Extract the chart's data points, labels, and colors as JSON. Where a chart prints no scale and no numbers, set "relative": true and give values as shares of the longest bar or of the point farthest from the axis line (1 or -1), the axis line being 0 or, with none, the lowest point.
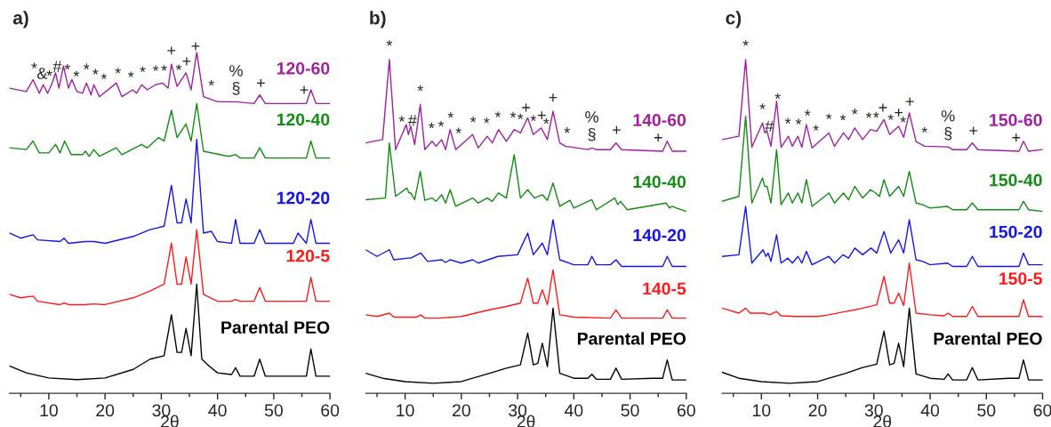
{
  "chart_data": [
    {
      "type": "line",
      "title": "a)",
      "xlabel": "2θ",
      "relative": true,
      "xlim": [
        3,
        60
      ],
      "tick_labels": "x",
      "xticks": [
        {
          "value": 5,
          "label": null
        },
        10,
        {
          "value": 15,
          "label": null
        },
        20,
        {
          "value": 25,
          "label": null
        },
        30,
        {
          "value": 35,
          "label": null
        },
        40,
        {
          "value": 45,
          "label": null
        },
        50,
        {
          "value": 55,
          "label": null
        },
        60
      ],
      "series": [
        {
          "name": "Parental PEO",
          "color": "#000000",
          "x": [
            3,
            6,
            10,
            15,
            20,
            25,
            28,
            30.5,
            31.8,
            32.8,
            33.6,
            34.4,
            35.3,
            36.3,
            37.2,
            38.5,
            40,
            42.5,
            43.2,
            44,
            46.5,
            47.5,
            48.5,
            54,
            55.8,
            56.6,
            57.5,
            60
          ],
          "values": [
            0.08,
            0.06,
            0.045,
            0.04,
            0.045,
            0.07,
            0.1,
            0.11,
            0.23,
            0.12,
            0.12,
            0.19,
            0.11,
            0.32,
            0.1,
            0.08,
            0.06,
            0.055,
            0.075,
            0.05,
            0.05,
            0.1,
            0.05,
            0.05,
            0.05,
            0.13,
            0.05,
            0.05
          ]
        },
        {
          "name": "120-5",
          "color": "#ff1a1a",
          "x": [
            3,
            5,
            7.2,
            8,
            12,
            12.7,
            13.5,
            16.5,
            18,
            20,
            25,
            28,
            30.5,
            31.8,
            32.8,
            33.6,
            34.4,
            35.3,
            36.3,
            37.5,
            40,
            42.5,
            43.2,
            44,
            46.5,
            47.5,
            48.5,
            55.8,
            56.6,
            57.5,
            60
          ],
          "values": [
            0.29,
            0.28,
            0.285,
            0.27,
            0.26,
            0.265,
            0.26,
            0.26,
            0.262,
            0.26,
            0.28,
            0.3,
            0.32,
            0.44,
            0.32,
            0.32,
            0.4,
            0.32,
            0.48,
            0.29,
            0.27,
            0.27,
            0.275,
            0.27,
            0.27,
            0.31,
            0.27,
            0.27,
            0.34,
            0.27,
            0.27
          ]
        },
        {
          "name": "120-20",
          "color": "#1515e6",
          "x": [
            3,
            5,
            7.2,
            8,
            12,
            12.7,
            13.5,
            16.5,
            18,
            20,
            25,
            28,
            30.5,
            31.8,
            32.8,
            33.6,
            34.4,
            35.3,
            36.3,
            37.5,
            38.9,
            40,
            42.5,
            43.2,
            44,
            46.5,
            47.5,
            48.5,
            53.5,
            54.3,
            55.8,
            56.6,
            57.5,
            60
          ],
          "values": [
            0.47,
            0.455,
            0.465,
            0.45,
            0.445,
            0.455,
            0.44,
            0.445,
            0.445,
            0.44,
            0.46,
            0.48,
            0.49,
            0.61,
            0.5,
            0.5,
            0.57,
            0.5,
            0.745,
            0.47,
            0.475,
            0.445,
            0.44,
            0.51,
            0.44,
            0.44,
            0.48,
            0.44,
            0.44,
            0.47,
            0.44,
            0.51,
            0.44,
            0.44
          ]
        },
        {
          "name": "120-40",
          "color": "#128c12",
          "x": [
            3,
            6,
            7.2,
            8.3,
            10,
            11.2,
            12,
            12.8,
            14,
            16,
            16.5,
            17.2,
            18,
            19,
            22,
            23,
            26.5,
            27.5,
            29.5,
            30.5,
            31.8,
            32.8,
            34.4,
            35.3,
            36.3,
            37.5,
            42,
            43.2,
            44,
            46.5,
            47.5,
            48.5,
            50,
            55.8,
            56.6,
            57.5,
            60
          ],
          "values": [
            0.72,
            0.715,
            0.74,
            0.705,
            0.705,
            0.73,
            0.705,
            0.74,
            0.7,
            0.7,
            0.71,
            0.695,
            0.715,
            0.695,
            0.72,
            0.7,
            0.73,
            0.72,
            0.75,
            0.74,
            0.83,
            0.75,
            0.79,
            0.74,
            0.85,
            0.71,
            0.695,
            0.7,
            0.69,
            0.69,
            0.72,
            0.69,
            0.69,
            0.69,
            0.74,
            0.69,
            0.69
          ]
        },
        {
          "name": "120-60",
          "color": "#a020a0",
          "x": [
            3,
            6,
            7.2,
            8.3,
            9,
            9.8,
            10.6,
            11.2,
            11.8,
            12.6,
            13.5,
            14.1,
            15,
            16,
            16.7,
            17.5,
            18,
            19,
            22,
            23,
            24.9,
            25.6,
            26.5,
            27.5,
            29,
            30.2,
            31.2,
            31.8,
            32.8,
            34.4,
            35.3,
            36.3,
            37.5,
            40,
            43.2,
            46.5,
            47.5,
            48.5,
            55.8,
            56.6,
            57.5,
            60
          ],
          "values": [
            0.895,
            0.885,
            0.92,
            0.88,
            0.905,
            0.88,
            0.91,
            0.94,
            0.895,
            0.96,
            0.895,
            0.92,
            0.885,
            0.88,
            0.91,
            0.875,
            0.905,
            0.87,
            0.91,
            0.87,
            0.89,
            0.88,
            0.905,
            0.89,
            0.905,
            0.91,
            0.895,
            0.965,
            0.9,
            0.94,
            0.89,
            1.0,
            0.87,
            0.855,
            0.855,
            0.85,
            0.875,
            0.85,
            0.85,
            0.89,
            0.85,
            0.85
          ]
        }
      ],
      "annotations": [
        {
          "text": "*",
          "x": 7.4,
          "y": 0.913
        },
        {
          "text": "&",
          "x": 8.8,
          "y": 0.898
        },
        {
          "text": "*",
          "x": 10.1,
          "y": 0.891
        },
        {
          "text": "#",
          "x": 11.5,
          "y": 0.918
        },
        {
          "text": "*",
          "x": 13.3,
          "y": 0.909
        },
        {
          "text": "*",
          "x": 14.9,
          "y": 0.889
        },
        {
          "text": "*",
          "x": 16.7,
          "y": 0.91
        },
        {
          "text": "*",
          "x": 18.3,
          "y": 0.895
        },
        {
          "text": "*",
          "x": 19.8,
          "y": 0.881
        },
        {
          "text": "*",
          "x": 22.3,
          "y": 0.898
        },
        {
          "text": "*",
          "x": 24.6,
          "y": 0.887
        },
        {
          "text": "*",
          "x": 26.7,
          "y": 0.902
        },
        {
          "text": "*",
          "x": 29.0,
          "y": 0.905
        },
        {
          "text": "*",
          "x": 30.5,
          "y": 0.906
        },
        {
          "text": "+",
          "x": 31.8,
          "y": 0.965
        },
        {
          "text": "*",
          "x": 33.1,
          "y": 0.908
        },
        {
          "text": "+",
          "x": 34.5,
          "y": 0.934
        },
        {
          "text": "+",
          "x": 36.1,
          "y": 0.978
        },
        {
          "text": "*",
          "x": 38.9,
          "y": 0.862
        },
        {
          "text": "§",
          "x": 43.3,
          "y": 0.855
        },
        {
          "text": "%",
          "x": 43.3,
          "y": 0.855
        },
        {
          "text": "+",
          "x": 47.7,
          "y": 0.87
        },
        {
          "text": "+",
          "x": 55.4,
          "y": 0.85
        }
      ]
    },
    {
      "type": "line",
      "title": "b)",
      "xlabel": "2θ",
      "relative": true,
      "xlim": [
        3,
        60
      ],
      "tick_labels": "x",
      "xticks": [
        {
          "value": 5,
          "label": null
        },
        10,
        {
          "value": 15,
          "label": null
        },
        20,
        {
          "value": 25,
          "label": null
        },
        30,
        {
          "value": 35,
          "label": null
        },
        40,
        {
          "value": 45,
          "label": null
        },
        50,
        {
          "value": 55,
          "label": null
        },
        60
      ],
      "series": [
        {
          "name": "Parental PEO",
          "color": "#000000",
          "x": [
            3,
            6,
            10,
            15,
            20,
            25,
            28,
            30.5,
            31.8,
            32.8,
            33.6,
            34.4,
            35.3,
            36.3,
            37.5,
            40,
            42.5,
            43.2,
            44,
            46.5,
            47.5,
            48.5,
            54,
            55.8,
            56.6,
            57.5,
            60
          ],
          "values": [
            0.06,
            0.045,
            0.035,
            0.03,
            0.035,
            0.06,
            0.075,
            0.085,
            0.18,
            0.085,
            0.09,
            0.15,
            0.08,
            0.255,
            0.06,
            0.045,
            0.045,
            0.057,
            0.042,
            0.042,
            0.075,
            0.042,
            0.045,
            0.045,
            0.1,
            0.04,
            0.04
          ]
        },
        {
          "name": "140-5",
          "color": "#ff1a1a",
          "x": [
            3,
            5,
            7.2,
            8,
            12,
            12.8,
            13.5,
            16,
            20,
            25,
            28,
            30.5,
            31.8,
            32.8,
            33.6,
            34.4,
            35.3,
            36.3,
            37.5,
            40,
            46.5,
            47.5,
            48.5,
            55.8,
            56.6,
            57.5,
            60
          ],
          "values": [
            0.235,
            0.23,
            0.24,
            0.228,
            0.228,
            0.235,
            0.225,
            0.225,
            0.23,
            0.25,
            0.26,
            0.27,
            0.345,
            0.27,
            0.27,
            0.31,
            0.265,
            0.37,
            0.235,
            0.228,
            0.225,
            0.25,
            0.225,
            0.225,
            0.25,
            0.225,
            0.225
          ]
        },
        {
          "name": "140-20",
          "color": "#1515e6",
          "x": [
            3,
            5,
            7.2,
            8,
            10.5,
            11,
            12.8,
            14,
            16.5,
            17.2,
            18,
            20,
            22,
            23,
            26.5,
            30,
            31.8,
            32.8,
            34.4,
            35.3,
            36.3,
            37.5,
            40,
            42.5,
            43.2,
            44,
            46.5,
            47.5,
            48.5,
            55.8,
            56.6,
            57.5,
            60
          ],
          "values": [
            0.43,
            0.41,
            0.43,
            0.4,
            0.405,
            0.405,
            0.42,
            0.395,
            0.4,
            0.392,
            0.4,
            0.39,
            0.4,
            0.39,
            0.41,
            0.415,
            0.48,
            0.415,
            0.45,
            0.415,
            0.52,
            0.4,
            0.385,
            0.385,
            0.41,
            0.385,
            0.385,
            0.4,
            0.38,
            0.38,
            0.41,
            0.38,
            0.38
          ]
        },
        {
          "name": "140-40",
          "color": "#128c12",
          "x": [
            3,
            6.5,
            7.2,
            8.3,
            10.3,
            10.7,
            11,
            11.7,
            12.7,
            13.5,
            14.8,
            15.5,
            16.5,
            17.2,
            18,
            19,
            22,
            23,
            24.6,
            25.5,
            26.6,
            28,
            29.4,
            30.5,
            31.8,
            33,
            34.4,
            35.3,
            36.3,
            37.5,
            39.3,
            40,
            43.2,
            44,
            47.3,
            47.8,
            48.3,
            49.5,
            56.4,
            57,
            57.4,
            60
          ],
          "values": [
            0.58,
            0.585,
            0.75,
            0.59,
            0.615,
            0.6,
            0.6,
            0.58,
            0.665,
            0.578,
            0.585,
            0.575,
            0.595,
            0.57,
            0.61,
            0.56,
            0.585,
            0.57,
            0.585,
            0.575,
            0.6,
            0.585,
            0.715,
            0.585,
            0.61,
            0.585,
            0.595,
            0.578,
            0.63,
            0.56,
            0.578,
            0.555,
            0.58,
            0.55,
            0.585,
            0.565,
            0.575,
            0.55,
            0.57,
            0.555,
            0.56,
            0.545
          ]
        },
        {
          "name": "140-60",
          "color": "#a020a0",
          "x": [
            3,
            6,
            7.2,
            8.3,
            10.2,
            10.6,
            11,
            11.7,
            12.7,
            13.5,
            14.8,
            15.5,
            16.5,
            17.2,
            18,
            19,
            22,
            23,
            24.6,
            25.5,
            26.6,
            28,
            29.4,
            30.5,
            31.8,
            32.8,
            34.2,
            35.3,
            36.3,
            37.5,
            38.5,
            42.5,
            43.2,
            44,
            46.5,
            47.5,
            48.5,
            55.8,
            56.6,
            57.5,
            60
          ],
          "values": [
            0.75,
            0.76,
            1.0,
            0.73,
            0.805,
            0.775,
            0.8,
            0.745,
            0.865,
            0.73,
            0.755,
            0.74,
            0.76,
            0.73,
            0.79,
            0.73,
            0.775,
            0.735,
            0.77,
            0.75,
            0.79,
            0.755,
            0.79,
            0.78,
            0.825,
            0.775,
            0.795,
            0.76,
            0.845,
            0.75,
            0.74,
            0.73,
            0.735,
            0.73,
            0.73,
            0.75,
            0.73,
            0.725,
            0.755,
            0.725,
            0.725
          ]
        }
      ],
      "annotations": [
        {
          "text": "*",
          "x": 7.2,
          "y": 1.0
        },
        {
          "text": "*",
          "x": 9.4,
          "y": 0.773
        },
        {
          "text": "#",
          "x": 11.3,
          "y": 0.776
        },
        {
          "text": "*",
          "x": 12.7,
          "y": 0.865
        },
        {
          "text": "*",
          "x": 14.7,
          "y": 0.753
        },
        {
          "text": "*",
          "x": 16.4,
          "y": 0.758
        },
        {
          "text": "*",
          "x": 18.1,
          "y": 0.784
        },
        {
          "text": "*",
          "x": 19.5,
          "y": 0.738
        },
        {
          "text": "*",
          "x": 22.1,
          "y": 0.771
        },
        {
          "text": "*",
          "x": 24.5,
          "y": 0.768
        },
        {
          "text": "*",
          "x": 26.5,
          "y": 0.786
        },
        {
          "text": "*",
          "x": 29.2,
          "y": 0.785
        },
        {
          "text": "*",
          "x": 30.5,
          "y": 0.78
        },
        {
          "text": "+",
          "x": 31.5,
          "y": 0.815
        },
        {
          "text": "*",
          "x": 32.8,
          "y": 0.775
        },
        {
          "text": "+",
          "x": 34.3,
          "y": 0.792
        },
        {
          "text": "*",
          "x": 35.1,
          "y": 0.766
        },
        {
          "text": "+",
          "x": 36.3,
          "y": 0.845
        },
        {
          "text": "*",
          "x": 38.8,
          "y": 0.739
        },
        {
          "text": "§",
          "x": 43.2,
          "y": 0.735
        },
        {
          "text": "%",
          "x": 43.2,
          "y": 0.735
        },
        {
          "text": "+",
          "x": 47.6,
          "y": 0.748
        },
        {
          "text": "+",
          "x": 55.0,
          "y": 0.725
        }
      ]
    },
    {
      "type": "line",
      "title": "c)",
      "xlabel": "2θ",
      "relative": true,
      "xlim": [
        3,
        60
      ],
      "tick_labels": "x",
      "xticks": [
        {
          "value": 5,
          "label": null
        },
        10,
        {
          "value": 15,
          "label": null
        },
        20,
        {
          "value": 25,
          "label": null
        },
        30,
        {
          "value": 35,
          "label": null
        },
        40,
        {
          "value": 45,
          "label": null
        },
        50,
        {
          "value": 55,
          "label": null
        },
        60
      ],
      "series": [
        {
          "name": "Parental PEO",
          "color": "#000000",
          "x": [
            3,
            6,
            10,
            15,
            20,
            25,
            28,
            30.5,
            31.8,
            32.8,
            33.6,
            34.4,
            35.3,
            36.3,
            37.5,
            40,
            42.5,
            43.2,
            44,
            46.5,
            47.5,
            48.5,
            54,
            55.8,
            56.6,
            57.5,
            60
          ],
          "values": [
            0.063,
            0.045,
            0.035,
            0.03,
            0.035,
            0.06,
            0.077,
            0.087,
            0.186,
            0.085,
            0.09,
            0.15,
            0.08,
            0.255,
            0.058,
            0.045,
            0.042,
            0.058,
            0.04,
            0.04,
            0.077,
            0.04,
            0.045,
            0.045,
            0.1,
            0.04,
            0.04
          ]
        },
        {
          "name": "150-5",
          "color": "#ff1a1a",
          "x": [
            3,
            6,
            7.2,
            8,
            10.5,
            11.5,
            12.7,
            13.5,
            16,
            20,
            22,
            25,
            26.6,
            28,
            30.5,
            31.8,
            32.8,
            33.6,
            34.4,
            35.3,
            36.3,
            37.5,
            40,
            42.5,
            43.2,
            44,
            46.5,
            47.5,
            48.5,
            55.8,
            56.6,
            57.5,
            60
          ],
          "values": [
            0.255,
            0.24,
            0.255,
            0.24,
            0.24,
            0.235,
            0.245,
            0.232,
            0.23,
            0.23,
            0.235,
            0.245,
            0.25,
            0.255,
            0.265,
            0.35,
            0.27,
            0.27,
            0.3,
            0.263,
            0.39,
            0.24,
            0.235,
            0.232,
            0.24,
            0.23,
            0.23,
            0.26,
            0.23,
            0.23,
            0.28,
            0.23,
            0.23
          ]
        },
        {
          "name": "150-20",
          "color": "#1515e6",
          "x": [
            3,
            6,
            7.2,
            8.3,
            10.3,
            10.8,
            11.2,
            11.7,
            12.7,
            13.5,
            14.7,
            15.5,
            16.5,
            17.2,
            18,
            19,
            22,
            23,
            24.5,
            25.5,
            26.6,
            28,
            29.5,
            30.5,
            31.8,
            33,
            34.4,
            35.3,
            36.3,
            37.5,
            38.7,
            40,
            43.1,
            44,
            46.5,
            47.5,
            48.5,
            55.8,
            56.6,
            57.5,
            60
          ],
          "values": [
            0.41,
            0.415,
            0.56,
            0.39,
            0.43,
            0.41,
            0.42,
            0.395,
            0.475,
            0.39,
            0.405,
            0.39,
            0.41,
            0.39,
            0.425,
            0.385,
            0.41,
            0.39,
            0.415,
            0.405,
            0.435,
            0.415,
            0.435,
            0.42,
            0.485,
            0.42,
            0.46,
            0.42,
            0.52,
            0.4,
            0.395,
            0.385,
            0.39,
            0.38,
            0.38,
            0.41,
            0.38,
            0.38,
            0.42,
            0.385,
            0.385
          ]
        },
        {
          "name": "150-40",
          "color": "#128c12",
          "x": [
            3,
            6,
            7.2,
            8.3,
            10.2,
            10.6,
            11,
            11.7,
            12.7,
            13.5,
            14.8,
            15.5,
            16.5,
            17.2,
            18,
            19,
            22,
            23,
            24.6,
            25.5,
            26.6,
            28,
            29.4,
            30.3,
            31,
            31.8,
            32.8,
            34.4,
            35.3,
            36.3,
            37.5,
            38.7,
            40,
            43,
            44,
            46.5,
            47.5,
            48.5,
            55.8,
            56.6,
            57.5,
            60
          ],
          "values": [
            0.575,
            0.59,
            0.83,
            0.57,
            0.645,
            0.62,
            0.62,
            0.57,
            0.73,
            0.565,
            0.6,
            0.57,
            0.6,
            0.57,
            0.64,
            0.56,
            0.6,
            0.57,
            0.6,
            0.58,
            0.62,
            0.585,
            0.61,
            0.6,
            0.59,
            0.64,
            0.59,
            0.62,
            0.59,
            0.665,
            0.57,
            0.565,
            0.555,
            0.56,
            0.55,
            0.55,
            0.57,
            0.55,
            0.55,
            0.575,
            0.55,
            0.545
          ]
        },
        {
          "name": "150-60",
          "color": "#a020a0",
          "x": [
            3,
            6,
            7.2,
            8.3,
            10.2,
            10.6,
            11,
            11.7,
            12.7,
            13.5,
            14.8,
            15.5,
            16.5,
            17.2,
            18,
            19,
            22,
            23,
            24.6,
            25.5,
            26.6,
            28,
            29.4,
            30.5,
            31.8,
            32.8,
            34.4,
            35.3,
            36.3,
            37.5,
            39,
            43.2,
            44,
            46.5,
            47.5,
            48.5,
            55.8,
            56.6,
            57.5,
            60
          ],
          "values": [
            0.76,
            0.77,
            1.0,
            0.737,
            0.81,
            0.78,
            0.785,
            0.74,
            0.875,
            0.737,
            0.77,
            0.74,
            0.77,
            0.737,
            0.805,
            0.735,
            0.78,
            0.74,
            0.78,
            0.76,
            0.795,
            0.76,
            0.79,
            0.785,
            0.82,
            0.775,
            0.8,
            0.767,
            0.84,
            0.754,
            0.74,
            0.738,
            0.73,
            0.73,
            0.75,
            0.73,
            0.725,
            0.755,
            0.725,
            0.73
          ]
        }
      ],
      "annotations": [
        {
          "text": "*",
          "x": 7.2,
          "y": 1.0
        },
        {
          "text": "*",
          "x": 10.2,
          "y": 0.81
        },
        {
          "text": "#",
          "x": 11.4,
          "y": 0.759
        },
        {
          "text": "*",
          "x": 12.9,
          "y": 0.841
        },
        {
          "text": "*",
          "x": 14.7,
          "y": 0.767
        },
        {
          "text": "*",
          "x": 16.6,
          "y": 0.765
        },
        {
          "text": "*",
          "x": 18.2,
          "y": 0.791
        },
        {
          "text": "*",
          "x": 19.7,
          "y": 0.746
        },
        {
          "text": "*",
          "x": 22.0,
          "y": 0.78
        },
        {
          "text": "*",
          "x": 24.5,
          "y": 0.777
        },
        {
          "text": "*",
          "x": 26.6,
          "y": 0.795
        },
        {
          "text": "*",
          "x": 29.1,
          "y": 0.784
        },
        {
          "text": "*",
          "x": 30.4,
          "y": 0.785
        },
        {
          "text": "+",
          "x": 31.6,
          "y": 0.815
        },
        {
          "text": "*",
          "x": 33.0,
          "y": 0.778
        },
        {
          "text": "+",
          "x": 34.4,
          "y": 0.8
        },
        {
          "text": "*",
          "x": 35.2,
          "y": 0.771
        },
        {
          "text": "+",
          "x": 36.4,
          "y": 0.833
        },
        {
          "text": "*",
          "x": 39.0,
          "y": 0.74
        },
        {
          "text": "§",
          "x": 43.2,
          "y": 0.738
        },
        {
          "text": "%",
          "x": 43.2,
          "y": 0.738
        },
        {
          "text": "+",
          "x": 47.7,
          "y": 0.746
        },
        {
          "text": "+",
          "x": 55.3,
          "y": 0.725
        }
      ]
    }
  ]
}
